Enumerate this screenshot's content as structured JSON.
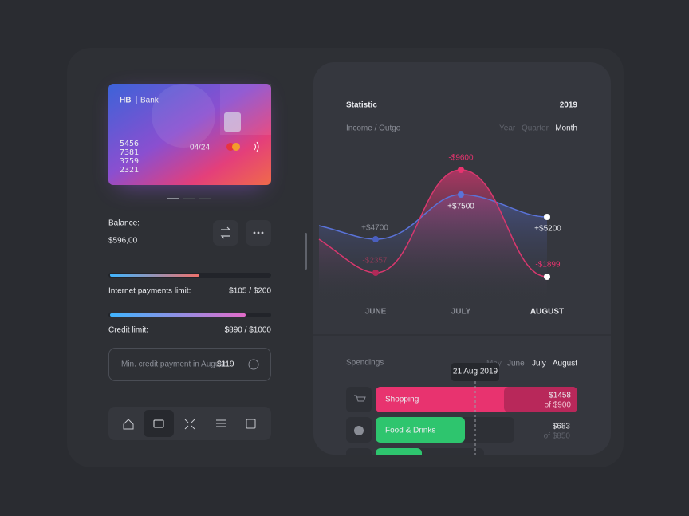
{
  "card": {
    "brand": "HB",
    "bank": "Bank",
    "number": [
      "5456",
      "7381",
      "3759",
      "2321"
    ],
    "expiry": "04/24"
  },
  "balance": {
    "label": "Balance:",
    "amount": "$596,00"
  },
  "limits": [
    {
      "label": "Internet payments limit:",
      "value": "$105 / $200"
    },
    {
      "label": "Credit limit:",
      "value": "$890 / $1000"
    }
  ],
  "min_payment": {
    "label": "Min. credit payment in August:",
    "amount": "$119"
  },
  "statistic": {
    "title": "Statistic",
    "year": "2019",
    "subtitle": "Income / Outgo",
    "periods": [
      "Year",
      "Quarter",
      "Month"
    ],
    "labels": [
      "-$9600",
      "+$7500",
      "+$4700",
      "-$2357",
      "+$5200",
      "-$1899"
    ],
    "months": [
      "JUNE",
      "JULY",
      "AUGUST"
    ]
  },
  "spendings": {
    "title": "Spendings",
    "periods": [
      "May",
      "June",
      "July",
      "August"
    ],
    "tooltip": "21 Aug 2019",
    "rows": [
      {
        "name": "Shopping",
        "amount": "$1458",
        "limit": "of $900"
      },
      {
        "name": "Food & Drinks",
        "amount": "$683",
        "limit": "of $850"
      }
    ]
  }
}
